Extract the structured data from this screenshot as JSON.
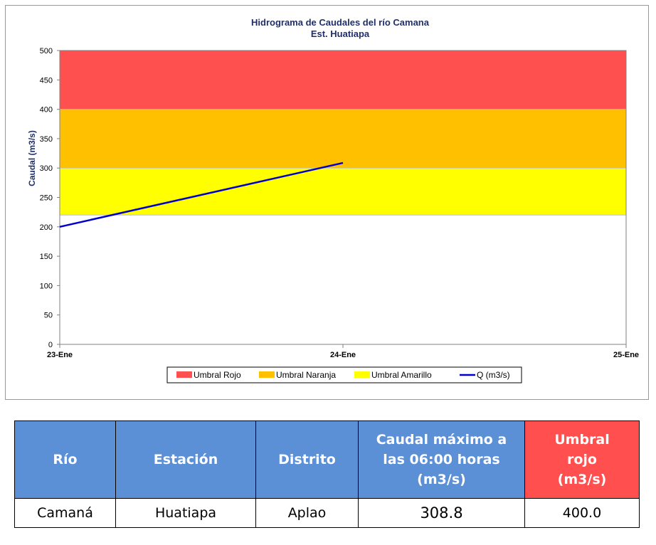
{
  "chart_data": {
    "type": "line",
    "title": "Hidrograma de Caudales del río Camana",
    "subtitle": "Est. Huatiapa",
    "ylabel": "Caudal  (m3/s)",
    "xlabel": "",
    "ylim": [
      0,
      500
    ],
    "yticks": [
      0,
      50,
      100,
      150,
      200,
      250,
      300,
      350,
      400,
      450,
      500
    ],
    "x_tick_labels": [
      "23-Ene",
      "24-Ene",
      "25-Ene"
    ],
    "x_range": [
      0,
      2
    ],
    "threshold_bands": [
      {
        "name": "Umbral Rojo",
        "from": 400,
        "to": 500,
        "color": "#ff5050"
      },
      {
        "name": "Umbral Naranja",
        "from": 300,
        "to": 400,
        "color": "#ffc000"
      },
      {
        "name": "Umbral Amarillo",
        "from": 220,
        "to": 300,
        "color": "#ffff00"
      }
    ],
    "series": [
      {
        "name": "Q (m3/s)",
        "color": "#0000cc",
        "x": [
          0,
          1
        ],
        "values": [
          200,
          308.8
        ]
      }
    ],
    "legend": {
      "position": "bottom",
      "entries": [
        "Umbral Rojo",
        "Umbral Naranja",
        "Umbral Amarillo",
        "Q (m3/s)"
      ]
    },
    "grid": false
  },
  "table": {
    "headers": [
      "Río",
      "Estación",
      "Distrito",
      "Caudal máximo a las 06:00 horas (m3/s)",
      "Umbral rojo (m3/s)"
    ],
    "row": [
      "Camaná",
      "Huatiapa",
      "Aplao",
      "308.8",
      "400.0"
    ],
    "header_colors": {
      "blue": "#5b8fd6",
      "red": "#ff4f4f"
    }
  }
}
